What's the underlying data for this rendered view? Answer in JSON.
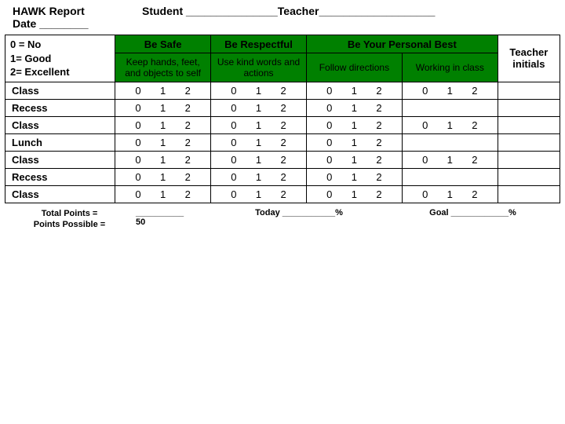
{
  "header": {
    "title_line1": "HAWK Report",
    "title_line2": "Date ________",
    "student_label": "Student _______________",
    "teacher_label": "Teacher___________________"
  },
  "legend": {
    "l0": "0 = No",
    "l1": "1= Good",
    "l2": "2= Excellent"
  },
  "categories": {
    "safe": "Be Safe",
    "respect": "Be Respectful",
    "best": "Be Your Personal Best",
    "initials": "Teacher initials"
  },
  "subheads": {
    "safe": "Keep hands, feet, and objects to self",
    "respect": "Use kind words and actions",
    "best1": "Follow directions",
    "best2": "Working in class"
  },
  "rows": [
    {
      "label": "Class",
      "cells": [
        "0 1 2",
        "0 1 2",
        "0 1 2",
        "0 1 2"
      ]
    },
    {
      "label": "Recess",
      "cells": [
        "0 1 2",
        "0 1 2",
        "0 1 2",
        ""
      ]
    },
    {
      "label": "Class",
      "cells": [
        "0 1 2",
        "0 1 2",
        "0 1 2",
        "0 1 2"
      ]
    },
    {
      "label": "Lunch",
      "cells": [
        "0 1 2",
        "0 1 2",
        "0 1 2",
        ""
      ]
    },
    {
      "label": "Class",
      "cells": [
        "0 1 2",
        "0 1 2",
        "0 1 2",
        "0 1 2"
      ]
    },
    {
      "label": "Recess",
      "cells": [
        "0 1 2",
        "0 1 2",
        "0 1 2",
        ""
      ]
    },
    {
      "label": "Class",
      "cells": [
        "0 1 2",
        "0 1 2",
        "0 1 2",
        "0 1 2"
      ]
    }
  ],
  "footer": {
    "total_label": "Total Points =",
    "possible_label": "Points Possible =",
    "total_blank": "__________",
    "possible_value": "50",
    "today": "Today ___________%",
    "goal": "Goal ____________%"
  },
  "colors": {
    "header_green": "#008000",
    "border": "#000000",
    "background": "#ffffff"
  }
}
